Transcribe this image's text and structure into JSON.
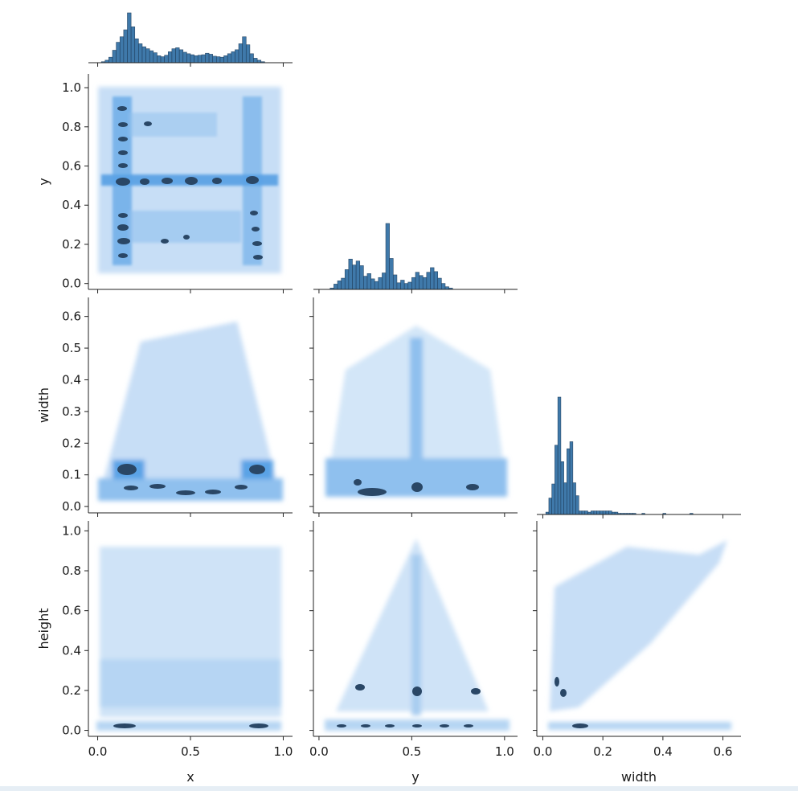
{
  "chart_data": {
    "type": "pairplot",
    "kind": "hist",
    "corner": true,
    "variables": [
      "x",
      "y",
      "width",
      "height"
    ],
    "colors": {
      "bar_fill": "#3572a6",
      "bar_edge": "#1f3f5e",
      "heat_low": "#cfe3f7",
      "heat_mid": "#2f86d6",
      "heat_high": "#243b55"
    },
    "axes": {
      "x": {
        "label": "x",
        "lim": [
          -0.05,
          1.05
        ],
        "ticks": [
          0.0,
          0.5,
          1.0
        ],
        "tick_labels": [
          "0.0",
          "0.5",
          "1.0"
        ]
      },
      "y": {
        "label": "y",
        "lim": [
          -0.03,
          1.07
        ],
        "ticks": [
          0.0,
          0.2,
          0.4,
          0.6,
          0.8,
          1.0
        ],
        "tick_labels": [
          "0.0",
          "0.2",
          "0.4",
          "0.6",
          "0.8",
          "1.0"
        ],
        "xticks": [
          0.0,
          0.5,
          1.0
        ],
        "xtick_labels": [
          "0.0",
          "0.5",
          "1.0"
        ]
      },
      "width": {
        "label": "width",
        "lim": [
          -0.02,
          0.66
        ],
        "ticks": [
          0.0,
          0.1,
          0.2,
          0.3,
          0.4,
          0.5,
          0.6
        ],
        "tick_labels": [
          "0.0",
          "0.1",
          "0.2",
          "0.3",
          "0.4",
          "0.5",
          "0.6"
        ],
        "xticks": [
          0.0,
          0.2,
          0.4,
          0.6
        ],
        "xtick_labels": [
          "0.0",
          "0.2",
          "0.4",
          "0.6"
        ]
      },
      "height": {
        "label": "height",
        "lim": [
          -0.03,
          1.05
        ],
        "ticks": [
          0.0,
          0.2,
          0.4,
          0.6,
          0.8,
          1.0
        ],
        "tick_labels": [
          "0.0",
          "0.2",
          "0.4",
          "0.6",
          "0.8",
          "1.0"
        ]
      }
    },
    "marginals": {
      "x": {
        "bin_start": 0.02,
        "bin_width": 0.02,
        "counts": [
          2,
          5,
          11,
          25,
          41,
          52,
          66,
          100,
          72,
          48,
          38,
          32,
          28,
          24,
          20,
          14,
          12,
          15,
          22,
          28,
          30,
          26,
          21,
          18,
          16,
          14,
          15,
          16,
          19,
          17,
          13,
          12,
          11,
          14,
          18,
          22,
          26,
          38,
          52,
          36,
          18,
          9,
          5,
          2
        ]
      },
      "y": {
        "bin_start": 0.06,
        "bin_width": 0.02,
        "counts": [
          2,
          8,
          13,
          17,
          30,
          46,
          37,
          43,
          36,
          20,
          24,
          16,
          12,
          18,
          25,
          100,
          47,
          22,
          10,
          14,
          9,
          11,
          18,
          26,
          21,
          18,
          26,
          33,
          27,
          17,
          9,
          4,
          2
        ]
      },
      "width": {
        "bin_start": 0.01,
        "bin_width": 0.01,
        "counts": [
          2,
          14,
          26,
          59,
          100,
          45,
          27,
          56,
          62,
          27,
          16,
          3,
          3,
          3,
          2,
          3,
          3,
          3,
          3,
          3,
          3,
          3,
          2,
          2,
          1,
          1,
          1,
          1,
          1,
          1,
          0,
          0,
          1,
          0,
          0,
          0,
          0,
          0,
          0,
          1,
          0,
          0,
          0,
          0,
          0,
          0,
          0,
          0,
          1
        ]
      }
    },
    "joint_panels": [
      {
        "x": "x",
        "y": "y",
        "description": "dense band at y=0.5 and columns near x=0.1–0.2 and x≈0.85"
      },
      {
        "x": "x",
        "y": "width",
        "description": "triangular spread, dense band at width≈0.05–0.12"
      },
      {
        "x": "y",
        "y": "width",
        "description": "peak spike at y=0.5, dense band at width≈0.05–0.13"
      },
      {
        "x": "x",
        "y": "height",
        "description": "columns of mass, band at height≈0.07 and ≈0.25"
      },
      {
        "x": "y",
        "y": "height",
        "description": "triangle peaking at y=0.5, height=1.0; band at height≈0.07"
      },
      {
        "x": "width",
        "y": "height",
        "description": "positive correlation cloud plus band at height≈0.07"
      }
    ]
  }
}
